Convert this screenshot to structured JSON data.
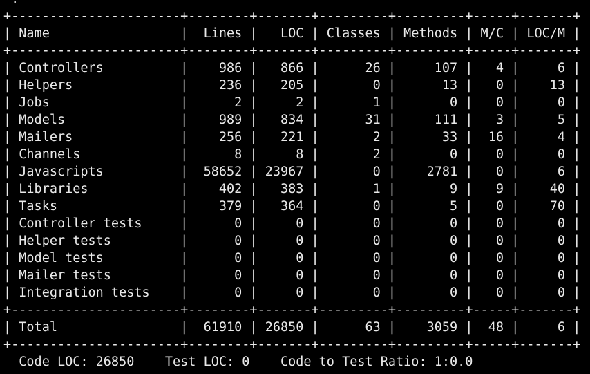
{
  "app": {
    "kind": "terminal",
    "colors": {
      "background": "#000000",
      "foreground": "#e9e9e9"
    }
  },
  "terminal": {
    "leading_line": " .",
    "stats_table": {
      "columns": [
        "Name",
        "Lines",
        "LOC",
        "Classes",
        "Methods",
        "M/C",
        "LOC/M"
      ],
      "rows": [
        [
          "Controllers",
          986,
          866,
          26,
          107,
          4,
          6
        ],
        [
          "Helpers",
          236,
          205,
          0,
          13,
          0,
          13
        ],
        [
          "Jobs",
          2,
          2,
          1,
          0,
          0,
          0
        ],
        [
          "Models",
          989,
          834,
          31,
          111,
          3,
          5
        ],
        [
          "Mailers",
          256,
          221,
          2,
          33,
          16,
          4
        ],
        [
          "Channels",
          8,
          8,
          2,
          0,
          0,
          0
        ],
        [
          "Javascripts",
          58652,
          23967,
          0,
          2781,
          0,
          6
        ],
        [
          "Libraries",
          402,
          383,
          1,
          9,
          9,
          40
        ],
        [
          "Tasks",
          379,
          364,
          0,
          5,
          0,
          70
        ],
        [
          "Controller tests",
          0,
          0,
          0,
          0,
          0,
          0
        ],
        [
          "Helper tests",
          0,
          0,
          0,
          0,
          0,
          0
        ],
        [
          "Model tests",
          0,
          0,
          0,
          0,
          0,
          0
        ],
        [
          "Mailer tests",
          0,
          0,
          0,
          0,
          0,
          0
        ],
        [
          "Integration tests",
          0,
          0,
          0,
          0,
          0,
          0
        ]
      ],
      "total_row": [
        "Total",
        61910,
        26850,
        63,
        3059,
        48,
        6
      ]
    },
    "summary": {
      "code_loc_label": "Code LOC:",
      "code_loc": "26850",
      "test_loc_label": "Test LOC:",
      "test_loc": "0",
      "ratio_label": "Code to Test Ratio:",
      "ratio": "1:0.0"
    }
  },
  "chart_data": {
    "type": "table",
    "title": "rake stats code statistics",
    "columns": [
      "Name",
      "Lines",
      "LOC",
      "Classes",
      "Methods",
      "M/C",
      "LOC/M"
    ],
    "rows": [
      [
        "Controllers",
        986,
        866,
        26,
        107,
        4,
        6
      ],
      [
        "Helpers",
        236,
        205,
        0,
        13,
        0,
        13
      ],
      [
        "Jobs",
        2,
        2,
        1,
        0,
        0,
        0
      ],
      [
        "Models",
        989,
        834,
        31,
        111,
        3,
        5
      ],
      [
        "Mailers",
        256,
        221,
        2,
        33,
        16,
        4
      ],
      [
        "Channels",
        8,
        8,
        2,
        0,
        0,
        0
      ],
      [
        "Javascripts",
        58652,
        23967,
        0,
        2781,
        0,
        6
      ],
      [
        "Libraries",
        402,
        383,
        1,
        9,
        9,
        40
      ],
      [
        "Tasks",
        379,
        364,
        0,
        5,
        0,
        70
      ],
      [
        "Controller tests",
        0,
        0,
        0,
        0,
        0,
        0
      ],
      [
        "Helper tests",
        0,
        0,
        0,
        0,
        0,
        0
      ],
      [
        "Model tests",
        0,
        0,
        0,
        0,
        0,
        0
      ],
      [
        "Mailer tests",
        0,
        0,
        0,
        0,
        0,
        0
      ],
      [
        "Integration tests",
        0,
        0,
        0,
        0,
        0,
        0
      ]
    ],
    "total": [
      "Total",
      61910,
      26850,
      63,
      3059,
      48,
      6
    ]
  }
}
